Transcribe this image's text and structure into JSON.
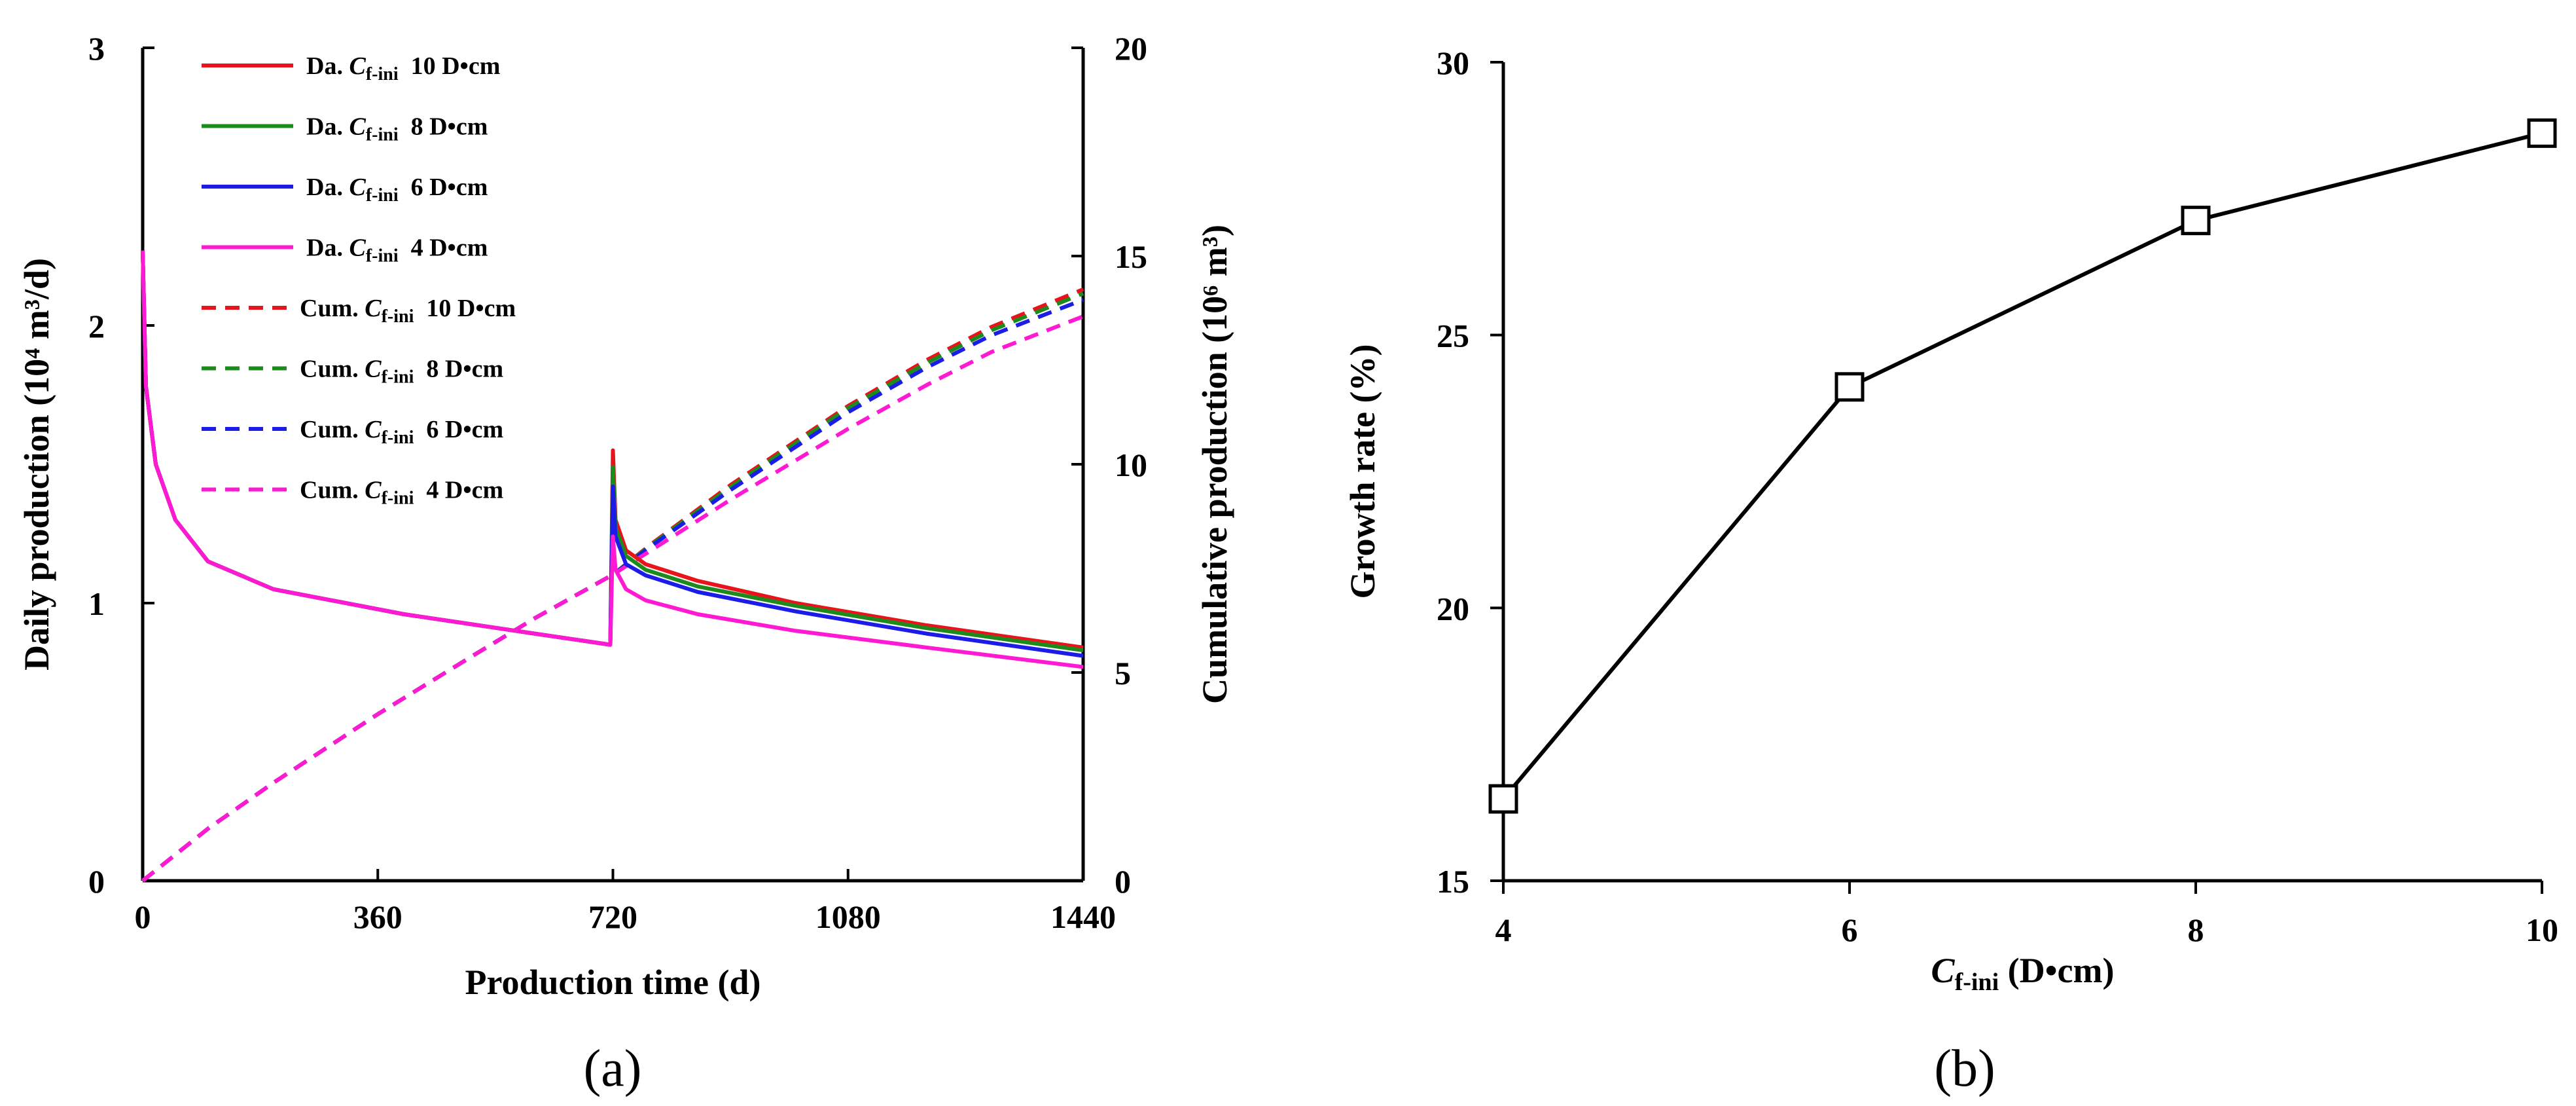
{
  "chart_data": [
    {
      "type": "line",
      "panel_label": "(a)",
      "xlabel": "Production time (d)",
      "ylabel_left": "Daily production (10⁴ m³/d)",
      "ylabel_right": "Cumulative production (10⁶ m³)",
      "xlim": [
        0,
        1440
      ],
      "ylim_left": [
        0,
        3
      ],
      "ylim_right": [
        0,
        20
      ],
      "xticks": [
        "0",
        "360",
        "720",
        "1080",
        "1440"
      ],
      "yticks_left": [
        "0",
        "1",
        "2",
        "3"
      ],
      "yticks_right": [
        "0",
        "5",
        "10",
        "15",
        "20"
      ],
      "grid": false,
      "legend_position": "top-left",
      "series": [
        {
          "name": "Da. Cf-ini 10 D•cm",
          "prefix": "Da.",
          "value": "10 D•cm",
          "axis": "left",
          "style": "solid",
          "color": "#e8141c",
          "x": [
            0,
            5,
            20,
            50,
            100,
            200,
            400,
            600,
            716,
            720,
            724,
            740,
            770,
            850,
            1000,
            1200,
            1440
          ],
          "y": [
            2.27,
            1.78,
            1.5,
            1.3,
            1.15,
            1.05,
            0.96,
            0.89,
            0.85,
            1.55,
            1.3,
            1.19,
            1.14,
            1.08,
            1.0,
            0.92,
            0.84
          ]
        },
        {
          "name": "Da. Cf-ini 8 D•cm",
          "prefix": "Da.",
          "value": "8 D•cm",
          "axis": "left",
          "style": "solid",
          "color": "#1c8a1c",
          "x": [
            0,
            5,
            20,
            50,
            100,
            200,
            400,
            600,
            716,
            720,
            724,
            740,
            770,
            850,
            1000,
            1200,
            1440
          ],
          "y": [
            2.27,
            1.78,
            1.5,
            1.3,
            1.15,
            1.05,
            0.96,
            0.89,
            0.85,
            1.49,
            1.27,
            1.17,
            1.12,
            1.06,
            0.99,
            0.91,
            0.83
          ]
        },
        {
          "name": "Da. Cf-ini 6 D•cm",
          "prefix": "Da.",
          "value": "6 D•cm",
          "axis": "left",
          "style": "solid",
          "color": "#1c1ce8",
          "x": [
            0,
            5,
            20,
            50,
            100,
            200,
            400,
            600,
            716,
            720,
            724,
            740,
            770,
            850,
            1000,
            1200,
            1440
          ],
          "y": [
            2.27,
            1.78,
            1.5,
            1.3,
            1.15,
            1.05,
            0.96,
            0.89,
            0.85,
            1.42,
            1.24,
            1.14,
            1.1,
            1.04,
            0.97,
            0.89,
            0.81
          ]
        },
        {
          "name": "Da. Cf-ini 4 D•cm",
          "prefix": "Da.",
          "value": "4 D•cm",
          "axis": "left",
          "style": "solid",
          "color": "#ff19d2",
          "x": [
            0,
            5,
            20,
            50,
            100,
            200,
            400,
            600,
            716,
            720,
            724,
            740,
            770,
            850,
            1000,
            1200,
            1440
          ],
          "y": [
            2.27,
            1.78,
            1.5,
            1.3,
            1.15,
            1.05,
            0.96,
            0.89,
            0.85,
            1.24,
            1.12,
            1.05,
            1.01,
            0.96,
            0.9,
            0.84,
            0.77
          ]
        },
        {
          "name": "Cum. Cf-ini 10 D•cm",
          "prefix": "Cum.",
          "value": "10 D•cm",
          "axis": "right",
          "style": "dashed",
          "color": "#e8141c",
          "x": [
            0,
            100,
            200,
            360,
            500,
            600,
            720,
            780,
            900,
            1080,
            1200,
            1300,
            1440
          ],
          "y": [
            0,
            1.25,
            2.35,
            4.0,
            5.35,
            6.3,
            7.35,
            8.1,
            9.5,
            11.4,
            12.5,
            13.3,
            14.2
          ]
        },
        {
          "name": "Cum. Cf-ini 8 D•cm",
          "prefix": "Cum.",
          "value": "8 D•cm",
          "axis": "right",
          "style": "dashed",
          "color": "#1c8a1c",
          "x": [
            0,
            100,
            200,
            360,
            500,
            600,
            720,
            780,
            900,
            1080,
            1200,
            1300,
            1440
          ],
          "y": [
            0,
            1.25,
            2.35,
            4.0,
            5.35,
            6.3,
            7.35,
            8.08,
            9.45,
            11.35,
            12.43,
            13.22,
            14.1
          ]
        },
        {
          "name": "Cum. Cf-ini 6 D•cm",
          "prefix": "Cum.",
          "value": "6 D•cm",
          "axis": "right",
          "style": "dashed",
          "color": "#1c1ce8",
          "x": [
            0,
            100,
            200,
            360,
            500,
            600,
            720,
            780,
            900,
            1080,
            1200,
            1300,
            1440
          ],
          "y": [
            0,
            1.25,
            2.35,
            4.0,
            5.35,
            6.3,
            7.35,
            8.05,
            9.38,
            11.25,
            12.32,
            13.1,
            13.95
          ]
        },
        {
          "name": "Cum. Cf-ini 4 D•cm",
          "prefix": "Cum.",
          "value": "4 D•cm",
          "axis": "right",
          "style": "dashed",
          "color": "#ff19d2",
          "x": [
            0,
            100,
            200,
            360,
            500,
            600,
            720,
            780,
            900,
            1080,
            1200,
            1300,
            1440
          ],
          "y": [
            0,
            1.25,
            2.35,
            4.0,
            5.35,
            6.3,
            7.35,
            7.95,
            9.15,
            10.85,
            11.9,
            12.7,
            13.55
          ]
        }
      ]
    },
    {
      "type": "line",
      "panel_label": "(b)",
      "xlabel": "Cf-ini (D•cm)",
      "ylabel": "Growth rate (%)",
      "xlim": [
        4,
        10
      ],
      "ylim": [
        15,
        30
      ],
      "xticks": [
        "4",
        "6",
        "8",
        "10"
      ],
      "yticks": [
        "15",
        "20",
        "25",
        "30"
      ],
      "grid": false,
      "marker": "square-open",
      "x": [
        4,
        6,
        8,
        10
      ],
      "y": [
        16.5,
        24.05,
        27.1,
        28.7
      ]
    }
  ]
}
